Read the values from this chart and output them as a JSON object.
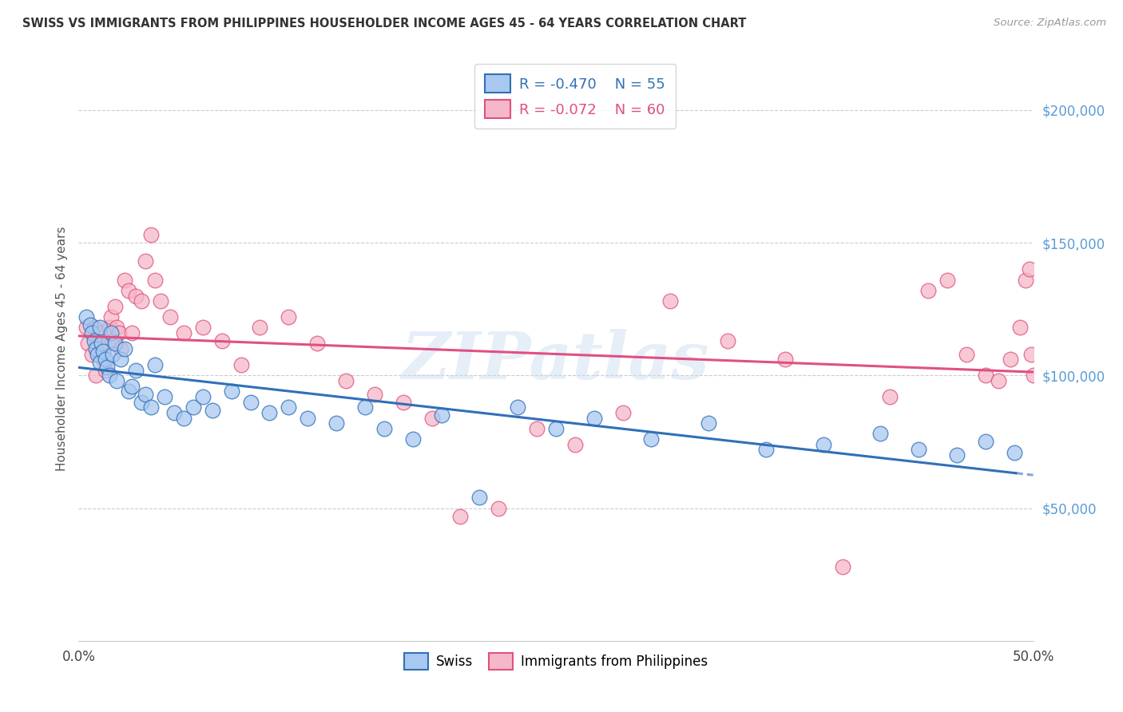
{
  "title": "SWISS VS IMMIGRANTS FROM PHILIPPINES HOUSEHOLDER INCOME AGES 45 - 64 YEARS CORRELATION CHART",
  "source": "Source: ZipAtlas.com",
  "ylabel": "Householder Income Ages 45 - 64 years",
  "xlim": [
    0.0,
    0.5
  ],
  "ylim": [
    0,
    220000
  ],
  "xtick_positions": [
    0.0,
    0.1,
    0.2,
    0.3,
    0.4,
    0.5
  ],
  "xticklabels": [
    "0.0%",
    "",
    "",
    "",
    "",
    "50.0%"
  ],
  "ytick_labels_right": [
    "$50,000",
    "$100,000",
    "$150,000",
    "$200,000"
  ],
  "ytick_vals_right": [
    50000,
    100000,
    150000,
    200000
  ],
  "swiss_color": "#a8c8f0",
  "philippines_color": "#f5b8c8",
  "swiss_line_color": "#3070b8",
  "philippines_line_color": "#e05080",
  "legend_swiss_R": "-0.470",
  "legend_swiss_N": "55",
  "legend_phil_R": "-0.072",
  "legend_phil_N": "60",
  "watermark": "ZIPatlas",
  "swiss_x": [
    0.004,
    0.006,
    0.007,
    0.008,
    0.009,
    0.01,
    0.011,
    0.011,
    0.012,
    0.013,
    0.014,
    0.015,
    0.016,
    0.017,
    0.018,
    0.019,
    0.02,
    0.022,
    0.024,
    0.026,
    0.028,
    0.03,
    0.033,
    0.035,
    0.038,
    0.04,
    0.045,
    0.05,
    0.055,
    0.06,
    0.065,
    0.07,
    0.08,
    0.09,
    0.1,
    0.11,
    0.12,
    0.135,
    0.15,
    0.16,
    0.175,
    0.19,
    0.21,
    0.23,
    0.25,
    0.27,
    0.3,
    0.33,
    0.36,
    0.39,
    0.42,
    0.44,
    0.46,
    0.475,
    0.49
  ],
  "swiss_y": [
    122000,
    119000,
    116000,
    113000,
    110000,
    108000,
    118000,
    105000,
    112000,
    109000,
    106000,
    103000,
    100000,
    116000,
    108000,
    112000,
    98000,
    106000,
    110000,
    94000,
    96000,
    102000,
    90000,
    93000,
    88000,
    104000,
    92000,
    86000,
    84000,
    88000,
    92000,
    87000,
    94000,
    90000,
    86000,
    88000,
    84000,
    82000,
    88000,
    80000,
    76000,
    85000,
    54000,
    88000,
    80000,
    84000,
    76000,
    82000,
    72000,
    74000,
    78000,
    72000,
    70000,
    75000,
    71000
  ],
  "phil_x": [
    0.004,
    0.005,
    0.007,
    0.008,
    0.009,
    0.01,
    0.011,
    0.012,
    0.013,
    0.014,
    0.015,
    0.016,
    0.017,
    0.018,
    0.019,
    0.02,
    0.021,
    0.022,
    0.024,
    0.026,
    0.028,
    0.03,
    0.033,
    0.035,
    0.038,
    0.04,
    0.043,
    0.048,
    0.055,
    0.065,
    0.075,
    0.085,
    0.095,
    0.11,
    0.125,
    0.14,
    0.155,
    0.17,
    0.185,
    0.2,
    0.22,
    0.24,
    0.26,
    0.285,
    0.31,
    0.34,
    0.37,
    0.4,
    0.425,
    0.445,
    0.455,
    0.465,
    0.475,
    0.482,
    0.488,
    0.493,
    0.496,
    0.498,
    0.499,
    0.5
  ],
  "phil_y": [
    118000,
    112000,
    108000,
    118000,
    100000,
    112000,
    116000,
    110000,
    106000,
    102000,
    112000,
    118000,
    122000,
    113000,
    126000,
    118000,
    116000,
    110000,
    136000,
    132000,
    116000,
    130000,
    128000,
    143000,
    153000,
    136000,
    128000,
    122000,
    116000,
    118000,
    113000,
    104000,
    118000,
    122000,
    112000,
    98000,
    93000,
    90000,
    84000,
    47000,
    50000,
    80000,
    74000,
    86000,
    128000,
    113000,
    106000,
    28000,
    92000,
    132000,
    136000,
    108000,
    100000,
    98000,
    106000,
    118000,
    136000,
    140000,
    108000,
    100000
  ]
}
